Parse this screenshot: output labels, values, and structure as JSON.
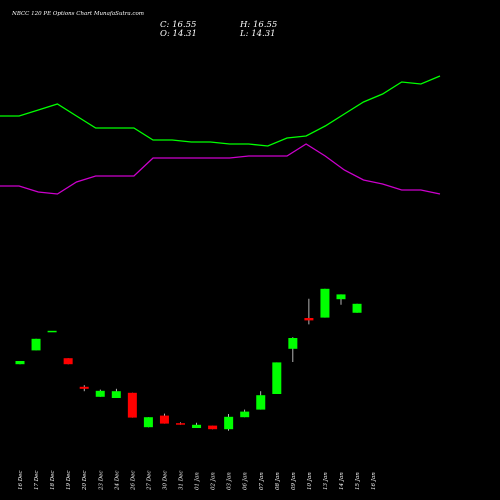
{
  "title": "NBCC 120 PE Options Chart MunafaSutra.com",
  "ohlc": {
    "close": "C: 16.55",
    "high": "H: 16.55",
    "open": "O: 14.31",
    "low": "L: 14.31"
  },
  "colors": {
    "background": "#000000",
    "up": "#00ff00",
    "down": "#ff0000",
    "band_upper": "#00ff00",
    "band_lower": "#cc00cc",
    "text": "#ffffff"
  },
  "chart_data": {
    "type": "candlestick",
    "categories": [
      "16 Dec",
      "17 Dec",
      "18 Dec",
      "19 Dec",
      "20 Dec",
      "23 Dec",
      "24 Dec",
      "26 Dec",
      "27 Dec",
      "30 Dec",
      "31 Dec",
      "01 Jan",
      "02 Jan",
      "03 Jan",
      "06 Jan",
      "07 Jan",
      "08 Jan",
      "09 Jan",
      "10 Jan",
      "13 Jan",
      "14 Jan",
      "15 Jan",
      "16 Jan"
    ],
    "candles": [
      {
        "open": 1.45,
        "close": 2.25,
        "high": 2.25,
        "low": 1.45
      },
      {
        "open": 4.9,
        "close": 7.8,
        "high": 7.8,
        "low": 4.9
      },
      {
        "open": 9.8,
        "close": 9.8,
        "high": 9.8,
        "low": 9.8
      },
      {
        "open": 2.95,
        "close": 1.45,
        "high": 2.95,
        "low": 1.45
      },
      {
        "open": -4.2,
        "close": -4.7,
        "high": -3.8,
        "low": -5.3
      },
      {
        "open": -6.7,
        "close": -5.2,
        "high": -4.9,
        "low": -6.7
      },
      {
        "open": -7.0,
        "close": -5.3,
        "high": -4.7,
        "low": -7.0
      },
      {
        "open": -5.7,
        "close": -11.9,
        "high": -5.7,
        "low": -11.9
      },
      {
        "open": -14.3,
        "close": -11.8,
        "high": -11.8,
        "low": -14.3
      },
      {
        "open": -11.4,
        "close": -13.4,
        "high": -10.9,
        "low": -13.4
      },
      {
        "open": -13.3,
        "close": -13.5,
        "high": -13.1,
        "low": -13.7
      },
      {
        "open": -14.5,
        "close": -13.7,
        "high": -13.2,
        "low": -14.5
      },
      {
        "open": -13.9,
        "close": -14.8,
        "high": -13.9,
        "low": -14.8
      },
      {
        "open": -14.8,
        "close": -11.7,
        "high": -11.0,
        "low": -15.2
      },
      {
        "open": -11.8,
        "close": -10.4,
        "high": -9.9,
        "low": -11.8
      },
      {
        "open": -9.9,
        "close": -6.3,
        "high": -5.3,
        "low": -9.9
      },
      {
        "open": -6.0,
        "close": 1.9,
        "high": 1.9,
        "low": -6.0
      },
      {
        "open": 5.3,
        "close": 8.0,
        "high": 8.2,
        "low": 2.0
      },
      {
        "open": 13.0,
        "close": 12.4,
        "high": 17.8,
        "low": 11.4
      },
      {
        "open": 13.1,
        "close": 20.3,
        "high": 20.3,
        "low": 13.1
      },
      {
        "open": 17.7,
        "close": 18.9,
        "high": 18.9,
        "low": 16.3
      },
      {
        "open": 14.31,
        "close": 16.55,
        "high": 16.55,
        "low": 14.31
      }
    ],
    "candle_positions": [
      0,
      1,
      2,
      3,
      4,
      5,
      6,
      7,
      8,
      9,
      10,
      11,
      12,
      13,
      14,
      15,
      16,
      17,
      18,
      19,
      20,
      21
    ],
    "band_upper": [
      0.772,
      0.772,
      0.775,
      0.778,
      0.772,
      0.766,
      0.766,
      0.766,
      0.76,
      0.76,
      0.759,
      0.759,
      0.758,
      0.758,
      0.757,
      0.761,
      0.762,
      0.767,
      0.773,
      0.779,
      0.783,
      0.789,
      0.788,
      0.792
    ],
    "band_lower": [
      0.737,
      0.737,
      0.734,
      0.733,
      0.739,
      0.742,
      0.742,
      0.742,
      0.751,
      0.751,
      0.751,
      0.751,
      0.751,
      0.752,
      0.752,
      0.752,
      0.758,
      0.752,
      0.745,
      0.74,
      0.738,
      0.735,
      0.735,
      0.733
    ],
    "band_ylim": [
      0.7,
      0.8
    ],
    "ylim": [
      -20,
      30
    ]
  }
}
